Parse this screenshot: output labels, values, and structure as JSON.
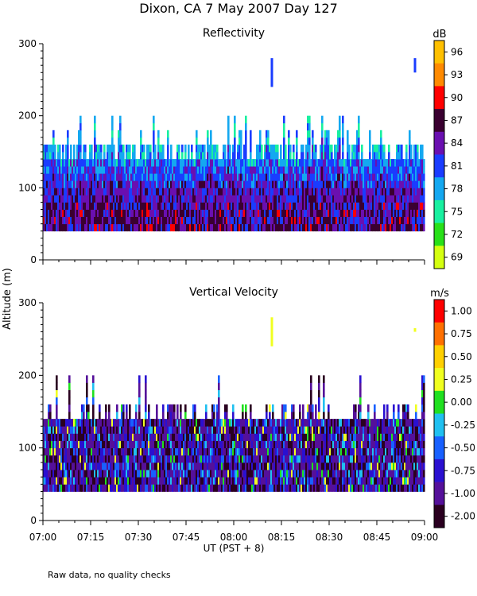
{
  "page_title": "Dixon, CA  7 May 2007  Day 127",
  "footer_note": "Raw data, no quality checks",
  "chart_data": [
    {
      "type": "heatmap",
      "title": "Reflectivity",
      "xlabel": "UT  (PST + 8)",
      "ylabel": "Altitude (m)",
      "ylim": [
        0,
        300
      ],
      "y_ticks": [
        0,
        100,
        200,
        300
      ],
      "x_ticks": [
        "07:00",
        "07:15",
        "07:30",
        "07:45",
        "08:00",
        "08:15",
        "08:30",
        "08:45",
        "09:00"
      ],
      "x_range": [
        "07:00",
        "09:00"
      ],
      "colorbar": {
        "unit": "dB",
        "labels": [
          "96",
          "93",
          "90",
          "87",
          "84",
          "81",
          "78",
          "75",
          "72",
          "69"
        ],
        "colors": [
          "#ffc000",
          "#ff8a00",
          "#ff0000",
          "#3a0030",
          "#6a0fb0",
          "#1a3cff",
          "#14a8f0",
          "#18f0a0",
          "#28e018",
          "#d4ff10"
        ]
      },
      "features": {
        "echo_base_m": 40,
        "echo_top_typical_m": 160,
        "echo_top_max_m": 200,
        "isolated_targets": [
          {
            "time": "08:12",
            "from_m": 240,
            "to_m": 280
          },
          {
            "time": "08:57",
            "from_m": 260,
            "to_m": 280
          }
        ]
      }
    },
    {
      "type": "heatmap",
      "title": "Vertical Velocity",
      "xlabel": "UT  (PST + 8)",
      "ylabel": "Altitude (m)",
      "ylim": [
        0,
        300
      ],
      "y_ticks": [
        0,
        100,
        200,
        300
      ],
      "x_ticks": [
        "07:00",
        "07:15",
        "07:30",
        "07:45",
        "08:00",
        "08:15",
        "08:30",
        "08:45",
        "09:00"
      ],
      "x_range": [
        "07:00",
        "09:00"
      ],
      "colorbar": {
        "unit": "m/s",
        "labels": [
          "1.00",
          "0.75",
          "0.50",
          "0.25",
          "0.00",
          "-0.25",
          "-0.50",
          "-0.75",
          "-1.00",
          "-2.00"
        ],
        "colors": [
          "#ff0000",
          "#ff7000",
          "#ffd000",
          "#f0ff20",
          "#20e020",
          "#20c0f0",
          "#1860ff",
          "#2a10d0",
          "#55109a",
          "#2a0020"
        ]
      },
      "features": {
        "echo_base_m": 40,
        "echo_top_typical_m": 140,
        "echo_top_max_m": 200,
        "isolated_targets": [
          {
            "time": "08:12",
            "from_m": 240,
            "to_m": 280
          },
          {
            "time": "08:57",
            "from_m": 260,
            "to_m": 265
          }
        ]
      }
    }
  ]
}
